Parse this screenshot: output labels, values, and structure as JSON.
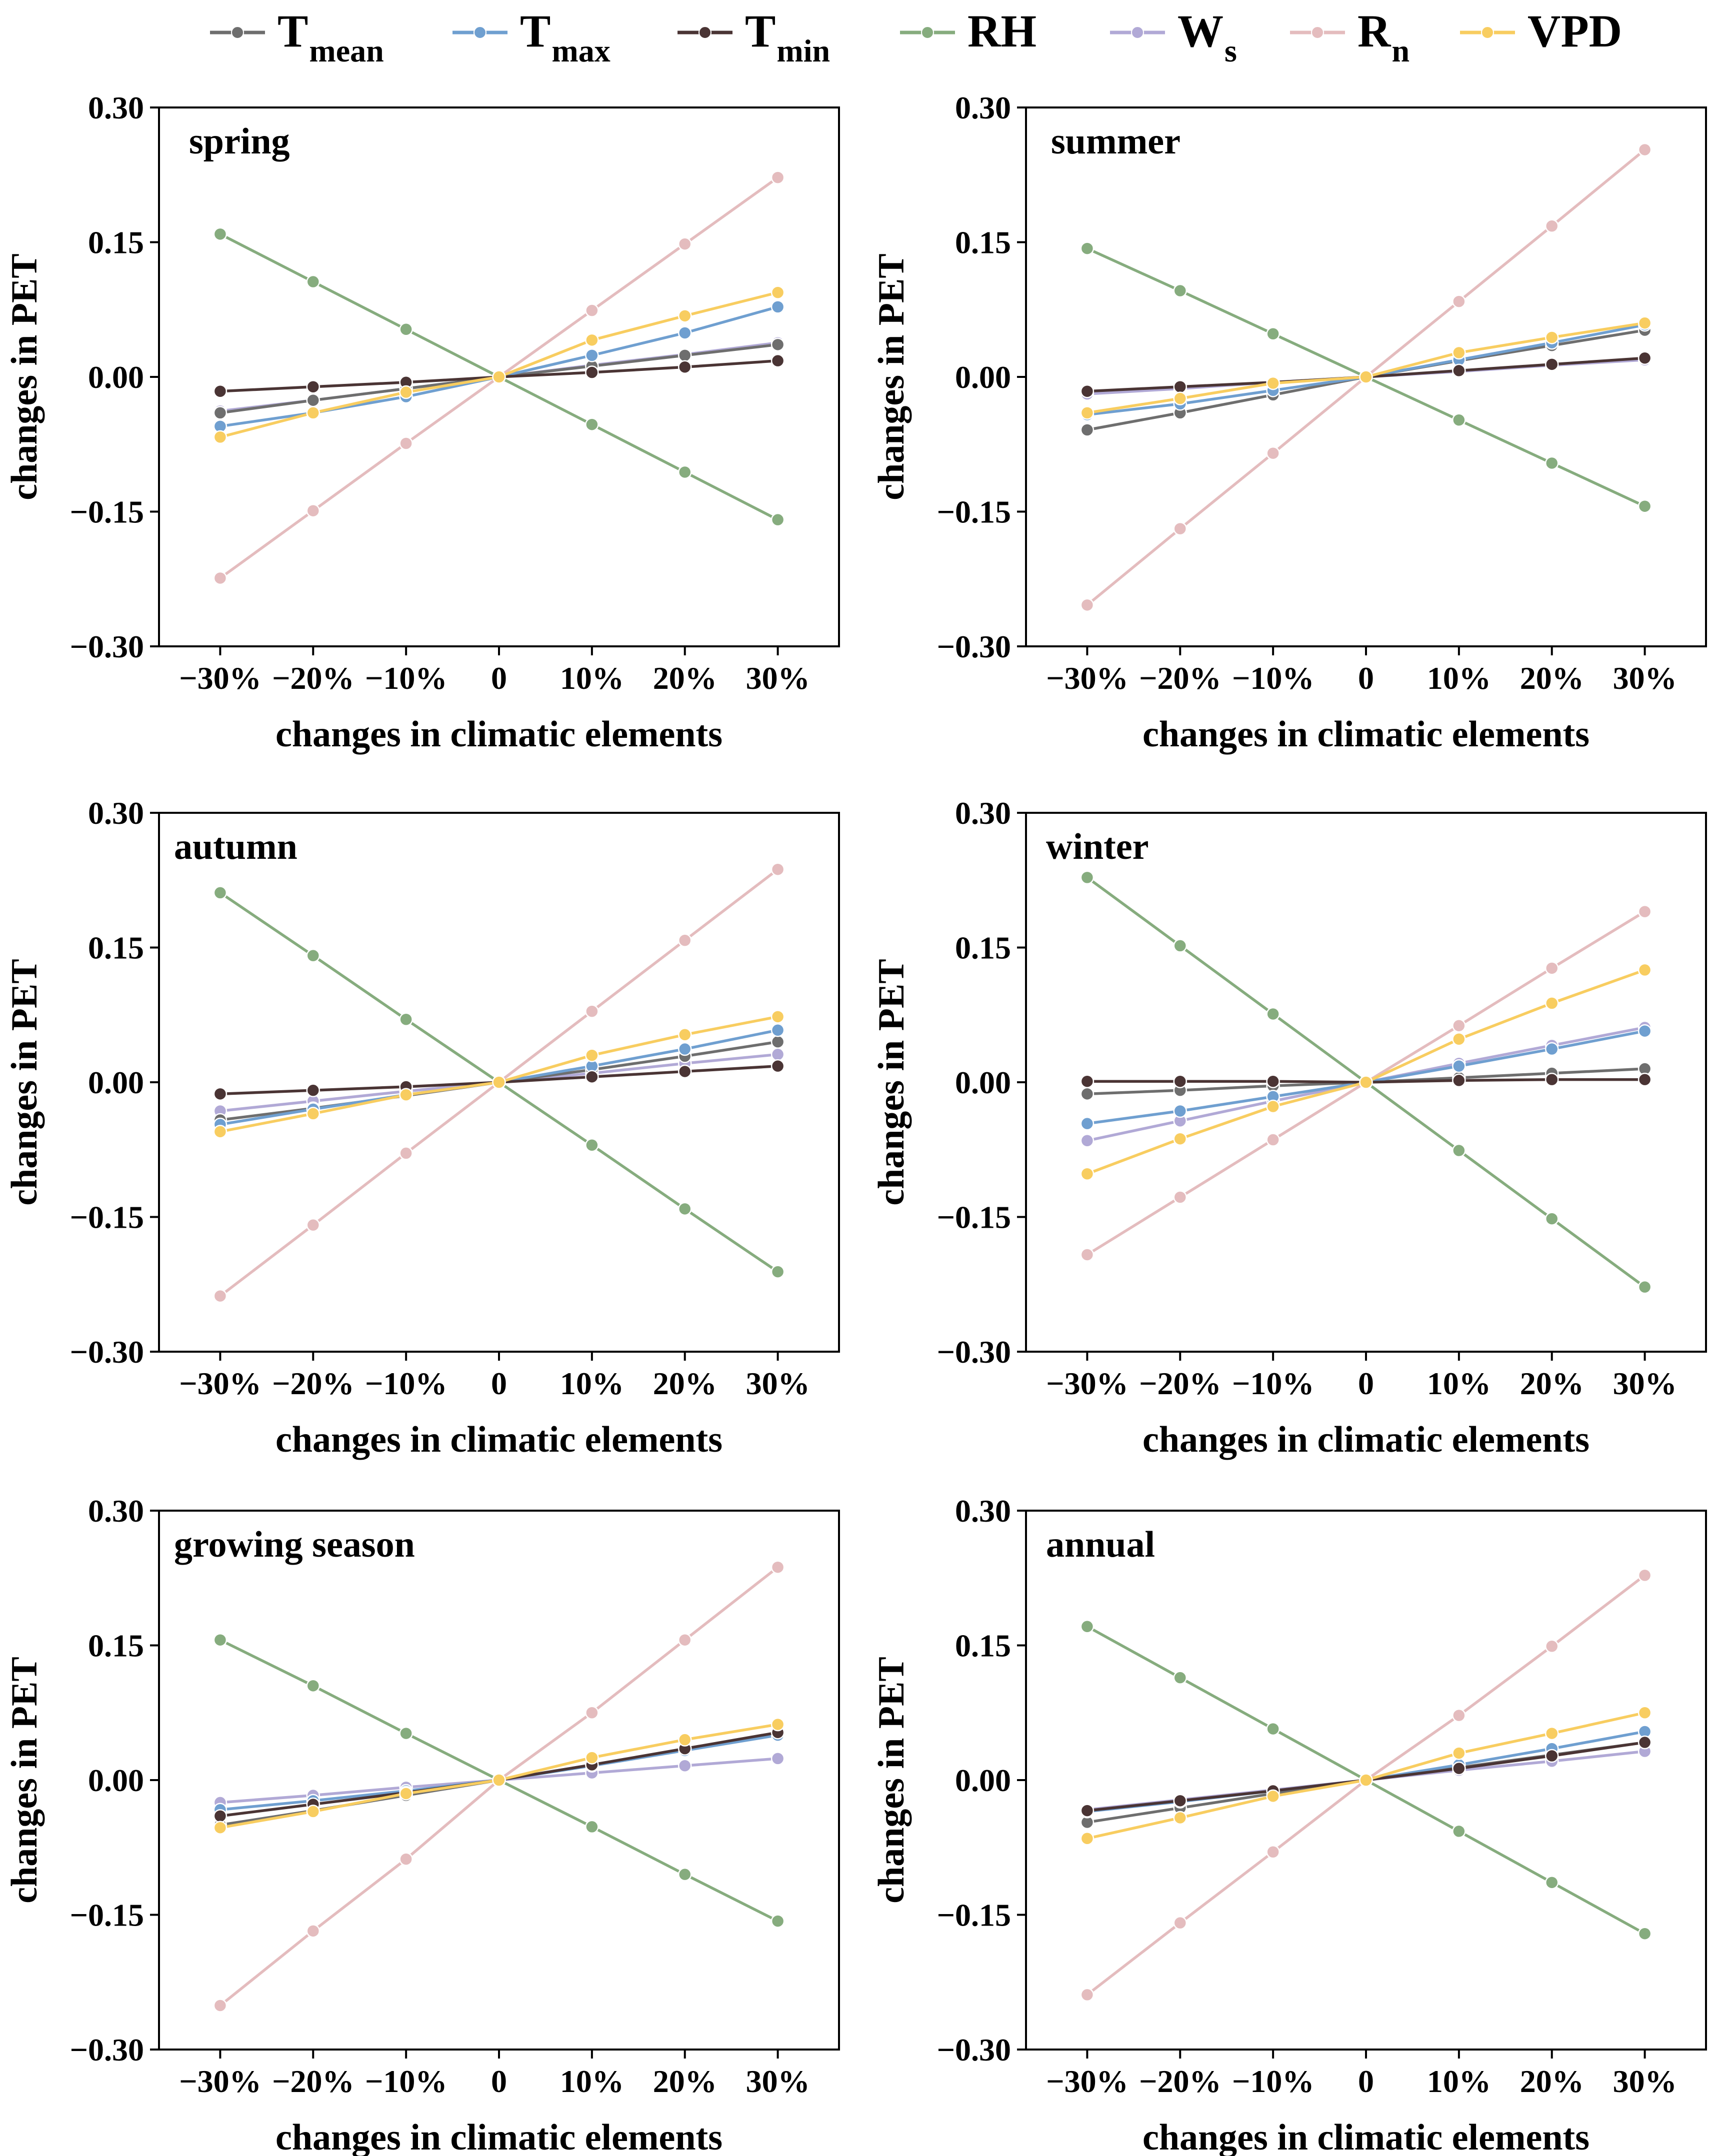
{
  "legend": [
    {
      "key": "tmean",
      "main": "T",
      "sub": "mean",
      "color": "#6e6e6e"
    },
    {
      "key": "tmax",
      "main": "T",
      "sub": "max",
      "color": "#6f9fd0"
    },
    {
      "key": "tmin",
      "main": "T",
      "sub": "min",
      "color": "#4a3434"
    },
    {
      "key": "rh",
      "main": "RH",
      "sub": "",
      "color": "#86ac7e"
    },
    {
      "key": "ws",
      "main": "W",
      "sub": "s",
      "color": "#b1a9d6"
    },
    {
      "key": "rn",
      "main": "R",
      "sub": "n",
      "color": "#e4bcbe"
    },
    {
      "key": "vpd",
      "main": "VPD",
      "sub": "",
      "color": "#f8cd60"
    }
  ],
  "chart_data": [
    {
      "type": "line",
      "title": "spring",
      "xlabel": "changes in climatic elements",
      "ylabel": "changes in PET",
      "categories": [
        "−30%",
        "−20%",
        "−10%",
        "0",
        "10%",
        "20%",
        "30%"
      ],
      "yticks": [
        "0.30",
        "0.15",
        "0.00",
        "−0.15",
        "−0.30"
      ],
      "ylim": [
        -0.3,
        0.3
      ],
      "series": [
        {
          "name": "Tmean",
          "values": [
            -0.04,
            -0.026,
            -0.013,
            0,
            0.012,
            0.024,
            0.036
          ]
        },
        {
          "name": "Tmax",
          "values": [
            -0.055,
            -0.04,
            -0.022,
            0,
            0.024,
            0.049,
            0.078
          ]
        },
        {
          "name": "Tmin",
          "values": [
            -0.016,
            -0.011,
            -0.006,
            0,
            0.005,
            0.011,
            0.018
          ]
        },
        {
          "name": "RH",
          "values": [
            0.159,
            0.106,
            0.053,
            0,
            -0.053,
            -0.106,
            -0.159
          ]
        },
        {
          "name": "Ws",
          "values": [
            -0.038,
            -0.026,
            -0.013,
            0,
            0.013,
            0.025,
            0.038
          ]
        },
        {
          "name": "Rn",
          "values": [
            -0.224,
            -0.149,
            -0.074,
            0,
            0.074,
            0.148,
            0.222
          ]
        },
        {
          "name": "VPD",
          "values": [
            -0.067,
            -0.04,
            -0.017,
            0,
            0.041,
            0.068,
            0.094
          ]
        }
      ]
    },
    {
      "type": "line",
      "title": "summer",
      "xlabel": "changes in climatic elements",
      "ylabel": "changes in PET",
      "categories": [
        "−30%",
        "−20%",
        "−10%",
        "0",
        "10%",
        "20%",
        "30%"
      ],
      "yticks": [
        "0.30",
        "0.15",
        "0.00",
        "−0.15",
        "−0.30"
      ],
      "ylim": [
        -0.3,
        0.3
      ],
      "series": [
        {
          "name": "Tmean",
          "values": [
            -0.059,
            -0.04,
            -0.02,
            0,
            0.018,
            0.035,
            0.052
          ]
        },
        {
          "name": "Tmax",
          "values": [
            -0.042,
            -0.03,
            -0.015,
            0,
            0.019,
            0.038,
            0.058
          ]
        },
        {
          "name": "Tmin",
          "values": [
            -0.016,
            -0.011,
            -0.006,
            0,
            0.007,
            0.014,
            0.021
          ]
        },
        {
          "name": "RH",
          "values": [
            0.143,
            0.096,
            0.048,
            0,
            -0.048,
            -0.096,
            -0.144
          ]
        },
        {
          "name": "Ws",
          "values": [
            -0.019,
            -0.013,
            -0.006,
            0,
            0.006,
            0.013,
            0.019
          ]
        },
        {
          "name": "Rn",
          "values": [
            -0.254,
            -0.169,
            -0.085,
            0,
            0.084,
            0.168,
            0.253
          ]
        },
        {
          "name": "VPD",
          "values": [
            -0.04,
            -0.024,
            -0.007,
            0,
            0.027,
            0.044,
            0.06
          ]
        }
      ]
    },
    {
      "type": "line",
      "title": "autumn",
      "xlabel": "changes in climatic elements",
      "ylabel": "changes in PET",
      "categories": [
        "−30%",
        "−20%",
        "−10%",
        "0",
        "10%",
        "20%",
        "30%"
      ],
      "yticks": [
        "0.30",
        "0.15",
        "0.00",
        "−0.15",
        "−0.30"
      ],
      "ylim": [
        -0.3,
        0.3
      ],
      "series": [
        {
          "name": "Tmean",
          "values": [
            -0.042,
            -0.029,
            -0.015,
            0,
            0.014,
            0.029,
            0.045
          ]
        },
        {
          "name": "Tmax",
          "values": [
            -0.047,
            -0.03,
            -0.014,
            0,
            0.018,
            0.037,
            0.058
          ]
        },
        {
          "name": "Tmin",
          "values": [
            -0.013,
            -0.009,
            -0.005,
            0,
            0.006,
            0.012,
            0.018
          ]
        },
        {
          "name": "RH",
          "values": [
            0.211,
            0.141,
            0.07,
            0,
            -0.07,
            -0.141,
            -0.211
          ]
        },
        {
          "name": "Ws",
          "values": [
            -0.032,
            -0.021,
            -0.01,
            0,
            0.01,
            0.021,
            0.031
          ]
        },
        {
          "name": "Rn",
          "values": [
            -0.238,
            -0.159,
            -0.079,
            0,
            0.079,
            0.158,
            0.237
          ]
        },
        {
          "name": "VPD",
          "values": [
            -0.055,
            -0.035,
            -0.014,
            0,
            0.03,
            0.053,
            0.073
          ]
        }
      ]
    },
    {
      "type": "line",
      "title": "winter",
      "xlabel": "changes in climatic elements",
      "ylabel": "changes in PET",
      "categories": [
        "−30%",
        "−20%",
        "−10%",
        "0",
        "10%",
        "20%",
        "30%"
      ],
      "yticks": [
        "0.30",
        "0.15",
        "0.00",
        "−0.15",
        "−0.30"
      ],
      "ylim": [
        -0.3,
        0.3
      ],
      "series": [
        {
          "name": "Tmean",
          "values": [
            -0.013,
            -0.009,
            -0.004,
            0,
            0.005,
            0.01,
            0.015
          ]
        },
        {
          "name": "Tmax",
          "values": [
            -0.046,
            -0.032,
            -0.016,
            0,
            0.018,
            0.037,
            0.057
          ]
        },
        {
          "name": "Tmin",
          "values": [
            0.001,
            0.001,
            0.001,
            0,
            0.002,
            0.003,
            0.003
          ]
        },
        {
          "name": "RH",
          "values": [
            0.228,
            0.152,
            0.076,
            0,
            -0.076,
            -0.152,
            -0.228
          ]
        },
        {
          "name": "Ws",
          "values": [
            -0.065,
            -0.043,
            -0.021,
            0,
            0.021,
            0.041,
            0.061
          ]
        },
        {
          "name": "Rn",
          "values": [
            -0.192,
            -0.128,
            -0.064,
            0,
            0.063,
            0.127,
            0.19
          ]
        },
        {
          "name": "VPD",
          "values": [
            -0.102,
            -0.063,
            -0.027,
            0,
            0.048,
            0.088,
            0.125
          ]
        }
      ]
    },
    {
      "type": "line",
      "title": "growing season",
      "xlabel": "changes in climatic elements",
      "ylabel": "changes in PET",
      "categories": [
        "−30%",
        "−20%",
        "−10%",
        "0",
        "10%",
        "20%",
        "30%"
      ],
      "yticks": [
        "0.30",
        "0.15",
        "0.00",
        "−0.15",
        "−0.30"
      ],
      "ylim": [
        -0.3,
        0.3
      ],
      "series": [
        {
          "name": "Tmean",
          "values": [
            -0.05,
            -0.034,
            -0.017,
            0,
            0.017,
            0.034,
            0.051
          ]
        },
        {
          "name": "Tmax",
          "values": [
            -0.033,
            -0.023,
            -0.012,
            0,
            0.016,
            0.033,
            0.05
          ]
        },
        {
          "name": "Tmin",
          "values": [
            -0.04,
            -0.027,
            -0.014,
            0,
            0.017,
            0.035,
            0.053
          ]
        },
        {
          "name": "RH",
          "values": [
            0.156,
            0.105,
            0.052,
            0,
            -0.052,
            -0.105,
            -0.157
          ]
        },
        {
          "name": "Ws",
          "values": [
            -0.025,
            -0.017,
            -0.008,
            0,
            0.008,
            0.016,
            0.024
          ]
        },
        {
          "name": "Rn",
          "values": [
            -0.251,
            -0.168,
            -0.088,
            0,
            0.075,
            0.156,
            0.237
          ]
        },
        {
          "name": "VPD",
          "values": [
            -0.053,
            -0.035,
            -0.015,
            0,
            0.025,
            0.045,
            0.062
          ]
        }
      ]
    },
    {
      "type": "line",
      "title": "annual",
      "xlabel": "changes in climatic elements",
      "ylabel": "changes in PET",
      "categories": [
        "−30%",
        "−20%",
        "−10%",
        "0",
        "10%",
        "20%",
        "30%"
      ],
      "yticks": [
        "0.30",
        "0.15",
        "0.00",
        "−0.15",
        "−0.30"
      ],
      "ylim": [
        -0.3,
        0.3
      ],
      "series": [
        {
          "name": "Tmean",
          "values": [
            -0.047,
            -0.031,
            -0.015,
            0,
            0.014,
            0.028,
            0.042
          ]
        },
        {
          "name": "Tmax",
          "values": [
            -0.035,
            -0.024,
            -0.012,
            0,
            0.017,
            0.035,
            0.054
          ]
        },
        {
          "name": "Tmin",
          "values": [
            -0.034,
            -0.023,
            -0.012,
            0,
            0.013,
            0.027,
            0.042
          ]
        },
        {
          "name": "RH",
          "values": [
            0.171,
            0.114,
            0.057,
            0,
            -0.057,
            -0.114,
            -0.171
          ]
        },
        {
          "name": "Ws",
          "values": [
            -0.033,
            -0.022,
            -0.011,
            0,
            0.011,
            0.021,
            0.032
          ]
        },
        {
          "name": "Rn",
          "values": [
            -0.239,
            -0.159,
            -0.08,
            0,
            0.072,
            0.149,
            0.228
          ]
        },
        {
          "name": "VPD",
          "values": [
            -0.065,
            -0.042,
            -0.018,
            0,
            0.03,
            0.052,
            0.075
          ]
        }
      ]
    }
  ]
}
